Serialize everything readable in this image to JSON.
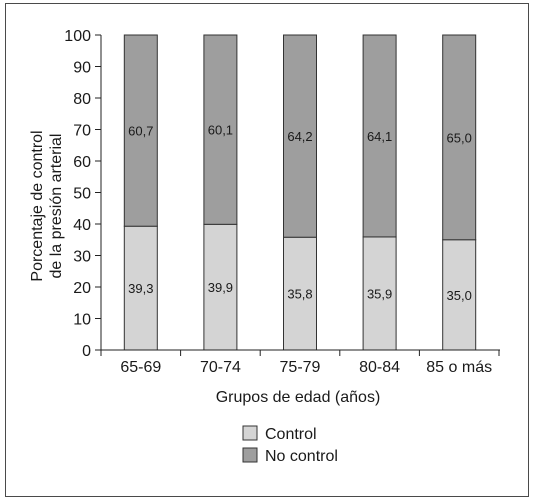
{
  "chart_data": {
    "type": "bar",
    "stacked": true,
    "categories": [
      "65-69",
      "70-74",
      "75-79",
      "80-84",
      "85 o más"
    ],
    "series": [
      {
        "name": "Control",
        "values": [
          39.3,
          39.9,
          35.8,
          35.9,
          35.0
        ],
        "labels": [
          "39,3",
          "39,9",
          "35,8",
          "35,9",
          "35,0"
        ],
        "color": "#d4d4d4"
      },
      {
        "name": "No control",
        "values": [
          60.7,
          60.1,
          64.2,
          64.1,
          65.0
        ],
        "labels": [
          "60,7",
          "60,1",
          "64,2",
          "64,1",
          "65,0"
        ],
        "color": "#9e9e9e"
      }
    ],
    "xlabel": "Grupos de edad (años)",
    "ylabel_lines": [
      "Porcentaje de control",
      "de la presión arterial"
    ],
    "ylim": [
      0,
      100
    ],
    "yticks": [
      0,
      10,
      20,
      30,
      40,
      50,
      60,
      70,
      80,
      90,
      100
    ],
    "grid": false,
    "legend_position": "bottom-center"
  }
}
